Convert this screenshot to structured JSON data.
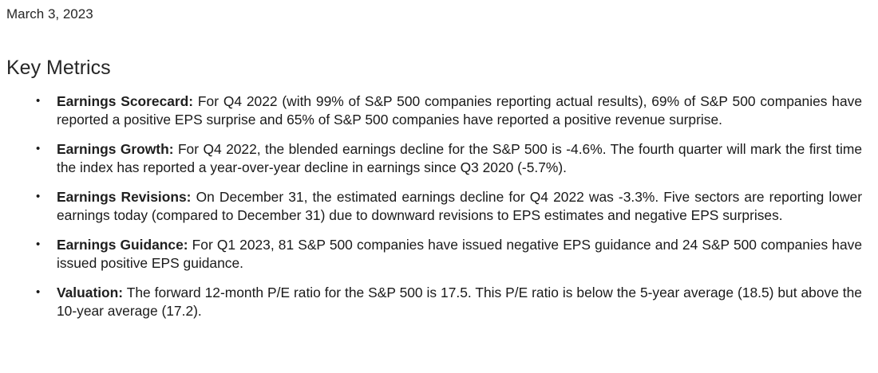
{
  "date": "March 3, 2023",
  "section_title": "Key Metrics",
  "bullet_glyph": "•",
  "metrics": [
    {
      "label": "Earnings Scorecard:",
      "text": "For Q4 2022 (with 99% of S&P 500 companies reporting actual results), 69% of S&P 500 companies have reported a positive EPS surprise and 65% of S&P 500 companies have reported a positive revenue surprise."
    },
    {
      "label": "Earnings Growth:",
      "text": "For Q4 2022, the blended earnings decline for the S&P 500 is -4.6%. The fourth quarter will mark the first time the index has reported a year-over-year decline in earnings since Q3 2020 (-5.7%)."
    },
    {
      "label": "Earnings Revisions:",
      "text": "On December 31, the estimated earnings decline for Q4 2022 was -3.3%. Five sectors are reporting lower earnings today (compared to December 31) due to downward revisions to EPS estimates and negative EPS surprises."
    },
    {
      "label": "Earnings Guidance:",
      "text": "For Q1 2023, 81 S&P 500 companies have issued negative EPS guidance and 24 S&P 500 companies have issued positive EPS guidance."
    },
    {
      "label": "Valuation:",
      "text": "The forward 12-month P/E ratio for the S&P 500 is 17.5. This P/E ratio is below the 5-year average (18.5) but above the 10-year average (17.2)."
    }
  ]
}
